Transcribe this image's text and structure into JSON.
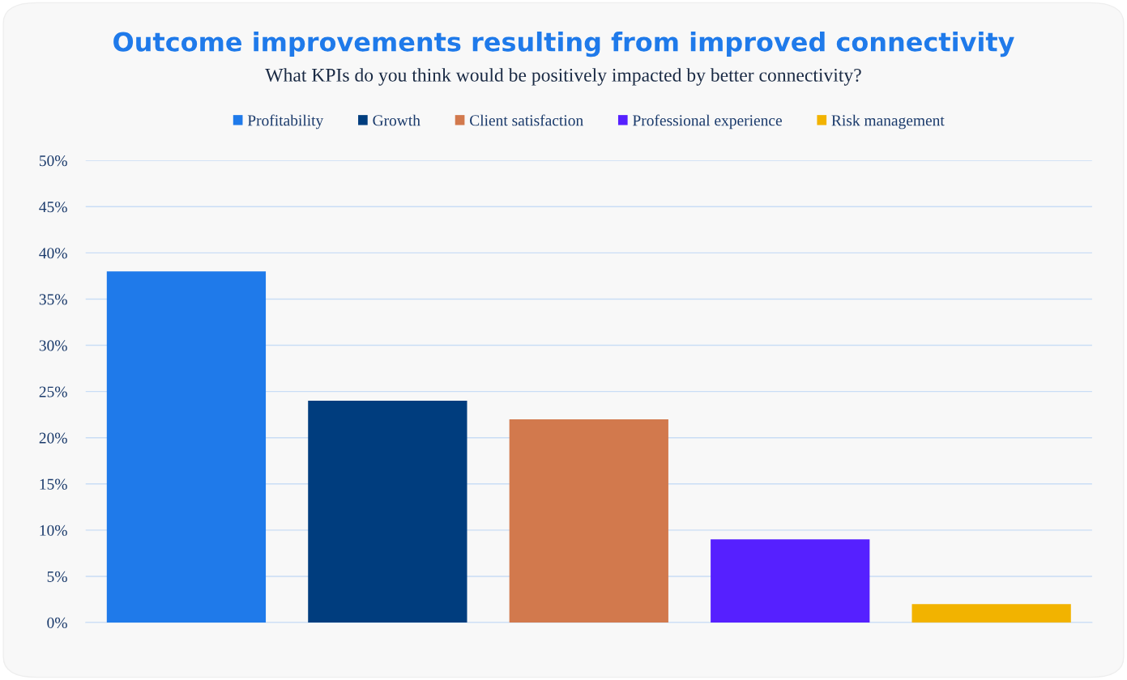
{
  "chart_data": {
    "type": "bar",
    "title": "Outcome improvements resulting from improved connectivity",
    "subtitle": "What KPIs do you think would be positively impacted by better connectivity?",
    "categories": [
      null,
      null,
      null,
      null,
      null
    ],
    "series": [
      {
        "name": "Profitability",
        "color": "#1f7aea",
        "values": [
          38,
          null,
          null,
          null,
          null
        ]
      },
      {
        "name": "Growth",
        "color": "#003d7e",
        "values": [
          null,
          24,
          null,
          null,
          null
        ]
      },
      {
        "name": "Client satisfaction",
        "color": "#d2794d",
        "values": [
          null,
          null,
          22,
          null,
          null
        ]
      },
      {
        "name": "Professional experience",
        "color": "#5620ff",
        "values": [
          null,
          null,
          null,
          9,
          null
        ]
      },
      {
        "name": "Risk management",
        "color": "#f2b300",
        "values": [
          null,
          null,
          null,
          null,
          2
        ]
      }
    ],
    "ylim": [
      0,
      50
    ],
    "yticks": [
      {
        "value": 0,
        "label": "0%"
      },
      {
        "value": 5,
        "label": "5%"
      },
      {
        "value": 10,
        "label": "10%"
      },
      {
        "value": 15,
        "label": "15%"
      },
      {
        "value": 20,
        "label": "20%"
      },
      {
        "value": 25,
        "label": "25%"
      },
      {
        "value": 30,
        "label": "30%"
      },
      {
        "value": 35,
        "label": "35%"
      },
      {
        "value": 40,
        "label": "40%"
      },
      {
        "value": 45,
        "label": "45%"
      },
      {
        "value": 50,
        "label": "50%"
      }
    ],
    "grid": "y",
    "legend": "top"
  }
}
